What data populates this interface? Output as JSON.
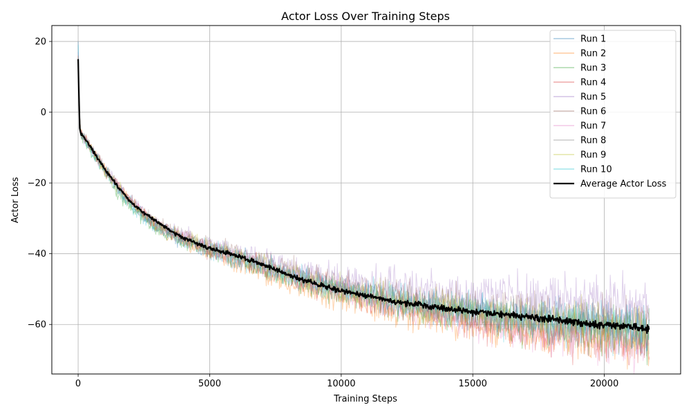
{
  "chart_data": {
    "type": "line",
    "title": "Actor Loss Over Training Steps",
    "xlabel": "Training Steps",
    "ylabel": "Actor Loss",
    "xlim": [
      -1000,
      22900
    ],
    "ylim": [
      -74,
      24.5
    ],
    "xticks": [
      0,
      5000,
      10000,
      15000,
      20000
    ],
    "xtick_labels": [
      "0",
      "5000",
      "10000",
      "15000",
      "20000"
    ],
    "yticks": [
      -60,
      -40,
      -20,
      0,
      20
    ],
    "ytick_labels": [
      "−60",
      "−40",
      "−20",
      "0",
      "20"
    ],
    "grid": true,
    "legend_position": "top-right",
    "series": [
      {
        "name": "Run 1",
        "color": "#1f77b4",
        "opacity": 0.35,
        "noise_start": 0.8,
        "noise_end": 3.5,
        "offset_end": 0.0,
        "x": [
          0,
          50,
          100,
          300,
          600,
          1000,
          1500,
          2000,
          2500,
          3000,
          4000,
          5000,
          6000,
          7000,
          8000,
          9000,
          10000,
          11000,
          12000,
          13000,
          14000,
          15000,
          16000,
          17000,
          18000,
          19000,
          20000,
          21000,
          21700
        ],
        "y": [
          20,
          0,
          -6.5,
          -8.5,
          -12,
          -16.5,
          -21.5,
          -26,
          -29.5,
          -32.5,
          -36.5,
          -39,
          -41.5,
          -44,
          -46.5,
          -48.5,
          -50.5,
          -52,
          -53.5,
          -55,
          -56,
          -57,
          -57.5,
          -58.3,
          -59,
          -59.8,
          -60.3,
          -61,
          -61.5
        ]
      },
      {
        "name": "Run 2",
        "color": "#ff7f0e",
        "opacity": 0.35,
        "noise_start": 0.8,
        "noise_end": 3.5,
        "offset_end": -4.0,
        "x": [
          0,
          50,
          100,
          300,
          600,
          1000,
          1500,
          2000,
          2500,
          3000,
          4000,
          5000,
          6000,
          7000,
          8000,
          9000,
          10000,
          11000,
          12000,
          13000,
          14000,
          15000,
          16000,
          17000,
          18000,
          19000,
          20000,
          21000,
          21700
        ],
        "y": [
          16,
          0,
          -6,
          -8,
          -11.5,
          -16,
          -21,
          -25.5,
          -29,
          -32.5,
          -36.5,
          -39.5,
          -42.5,
          -45.5,
          -48.5,
          -51,
          -53,
          -55,
          -56.5,
          -58,
          -59,
          -60.5,
          -61.5,
          -62.5,
          -63,
          -63.5,
          -64,
          -64.5,
          -65
        ]
      },
      {
        "name": "Run 3",
        "color": "#2ca02c",
        "opacity": 0.35,
        "noise_start": 0.8,
        "noise_end": 3.5,
        "offset_end": -1.5,
        "x": [
          0,
          50,
          100,
          300,
          600,
          1000,
          1500,
          2000,
          2500,
          3000,
          4000,
          5000,
          6000,
          7000,
          8000,
          9000,
          10000,
          11000,
          12000,
          13000,
          14000,
          15000,
          16000,
          17000,
          18000,
          19000,
          20000,
          21000,
          21700
        ],
        "y": [
          15,
          0,
          -6.5,
          -8.5,
          -12.5,
          -17,
          -22.5,
          -27,
          -30,
          -33,
          -36.5,
          -39,
          -41.5,
          -44.5,
          -47,
          -49,
          -51,
          -52.5,
          -54,
          -55.5,
          -56.5,
          -57.5,
          -58.5,
          -59.3,
          -60,
          -60.8,
          -61.5,
          -62,
          -62.5
        ]
      },
      {
        "name": "Run 4",
        "color": "#d62728",
        "opacity": 0.3,
        "noise_start": 0.8,
        "noise_end": 3.5,
        "offset_end": -4.5,
        "x": [
          0,
          50,
          100,
          300,
          600,
          1000,
          1500,
          2000,
          2500,
          3000,
          4000,
          5000,
          6000,
          7000,
          8000,
          9000,
          10000,
          11000,
          12000,
          13000,
          14000,
          15000,
          16000,
          17000,
          18000,
          19000,
          20000,
          21000,
          21700
        ],
        "y": [
          16,
          0,
          -6,
          -8,
          -11.5,
          -16,
          -21,
          -25.5,
          -29,
          -32,
          -35.5,
          -38.5,
          -41,
          -43.5,
          -46,
          -48.5,
          -50.5,
          -52.5,
          -54.5,
          -56,
          -57.5,
          -59,
          -60.5,
          -61.5,
          -62.5,
          -63.5,
          -64.5,
          -65.5,
          -66.5
        ]
      },
      {
        "name": "Run 5",
        "color": "#9467bd",
        "opacity": 0.3,
        "noise_start": 0.8,
        "noise_end": 4.0,
        "offset_end": 6.0,
        "x": [
          0,
          50,
          100,
          300,
          600,
          1000,
          1500,
          2000,
          2500,
          3000,
          4000,
          5000,
          6000,
          7000,
          8000,
          9000,
          10000,
          11000,
          12000,
          13000,
          14000,
          15000,
          16000,
          17000,
          18000,
          19000,
          20000,
          21000,
          21700
        ],
        "y": [
          17,
          0,
          -6,
          -8,
          -11,
          -15.5,
          -20.5,
          -25,
          -28.5,
          -31.5,
          -35,
          -37.5,
          -39.5,
          -42,
          -44,
          -45.5,
          -47,
          -48,
          -49,
          -50,
          -51,
          -51.5,
          -52,
          -52.5,
          -53,
          -53.5,
          -54,
          -54.5,
          -55
        ]
      },
      {
        "name": "Run 6",
        "color": "#8c564b",
        "opacity": 0.3,
        "noise_start": 0.8,
        "noise_end": 3.5,
        "offset_end": 2.5,
        "x": [
          0,
          50,
          100,
          300,
          600,
          1000,
          1500,
          2000,
          2500,
          3000,
          4000,
          5000,
          6000,
          7000,
          8000,
          9000,
          10000,
          11000,
          12000,
          13000,
          14000,
          15000,
          16000,
          17000,
          18000,
          19000,
          20000,
          21000,
          21700
        ],
        "y": [
          15,
          0,
          -5.5,
          -7.5,
          -11,
          -15.5,
          -20.5,
          -25,
          -28.5,
          -31.5,
          -35,
          -37.5,
          -39.5,
          -42,
          -44.5,
          -46.5,
          -48.5,
          -50,
          -51.5,
          -53,
          -54,
          -55,
          -55.8,
          -56.5,
          -57.2,
          -57.8,
          -58.3,
          -58.8,
          -59
        ]
      },
      {
        "name": "Run 7",
        "color": "#e377c2",
        "opacity": 0.3,
        "noise_start": 0.8,
        "noise_end": 3.5,
        "offset_end": -2.5,
        "x": [
          0,
          50,
          100,
          300,
          600,
          1000,
          1500,
          2000,
          2500,
          3000,
          4000,
          5000,
          6000,
          7000,
          8000,
          9000,
          10000,
          11000,
          12000,
          13000,
          14000,
          15000,
          16000,
          17000,
          18000,
          19000,
          20000,
          21000,
          21700
        ],
        "y": [
          14,
          0,
          -6,
          -8,
          -11.5,
          -16,
          -21,
          -25.5,
          -29,
          -32,
          -35.5,
          -38.5,
          -41,
          -43.5,
          -46,
          -48.5,
          -50.5,
          -52.5,
          -54.5,
          -56.5,
          -58,
          -59.5,
          -60.5,
          -61.5,
          -62.5,
          -63.5,
          -64.5,
          -65.5,
          -66
        ]
      },
      {
        "name": "Run 8",
        "color": "#7f7f7f",
        "opacity": 0.3,
        "noise_start": 0.8,
        "noise_end": 3.5,
        "offset_end": 1.0,
        "x": [
          0,
          50,
          100,
          300,
          600,
          1000,
          1500,
          2000,
          2500,
          3000,
          4000,
          5000,
          6000,
          7000,
          8000,
          9000,
          10000,
          11000,
          12000,
          13000,
          14000,
          15000,
          16000,
          17000,
          18000,
          19000,
          20000,
          21000,
          21700
        ],
        "y": [
          15,
          0,
          -6,
          -8,
          -11.5,
          -16,
          -21,
          -25.5,
          -29,
          -32,
          -35.5,
          -38,
          -40.5,
          -43,
          -45.5,
          -47.5,
          -49.5,
          -51,
          -52.5,
          -54,
          -55,
          -56,
          -57,
          -57.8,
          -58.5,
          -59.2,
          -59.8,
          -60.3,
          -60.8
        ]
      },
      {
        "name": "Run 9",
        "color": "#bcbd22",
        "opacity": 0.3,
        "noise_start": 0.8,
        "noise_end": 3.5,
        "offset_end": -1.5,
        "x": [
          0,
          50,
          100,
          300,
          600,
          1000,
          1500,
          2000,
          2500,
          3000,
          4000,
          5000,
          6000,
          7000,
          8000,
          9000,
          10000,
          11000,
          12000,
          13000,
          14000,
          15000,
          16000,
          17000,
          18000,
          19000,
          20000,
          21000,
          21700
        ],
        "y": [
          15,
          0,
          -6,
          -8,
          -11.5,
          -16,
          -21,
          -25.5,
          -29,
          -32,
          -35.5,
          -38,
          -40.5,
          -43,
          -45.5,
          -48,
          -50,
          -51.5,
          -53,
          -54.5,
          -55.5,
          -56.5,
          -57.5,
          -58.5,
          -59.5,
          -60.5,
          -61.5,
          -62,
          -62.5
        ]
      },
      {
        "name": "Run 10",
        "color": "#17becf",
        "opacity": 0.3,
        "noise_start": 0.8,
        "noise_end": 3.5,
        "offset_end": 0.0,
        "x": [
          0,
          50,
          100,
          300,
          600,
          1000,
          1500,
          2000,
          2500,
          3000,
          4000,
          5000,
          6000,
          7000,
          8000,
          9000,
          10000,
          11000,
          12000,
          13000,
          14000,
          15000,
          16000,
          17000,
          18000,
          19000,
          20000,
          21000,
          21700
        ],
        "y": [
          19,
          0,
          -6.5,
          -8.5,
          -12,
          -16.5,
          -21.5,
          -26.5,
          -29.5,
          -32.5,
          -36,
          -38.5,
          -41,
          -43.5,
          -46,
          -48,
          -50,
          -51.5,
          -53,
          -54.5,
          -55.5,
          -56.5,
          -57.5,
          -58.3,
          -59,
          -59.8,
          -60.5,
          -61,
          -61.5
        ]
      },
      {
        "name": "Average Actor Loss",
        "color": "#000000",
        "opacity": 1.0,
        "noise_start": 0.2,
        "noise_end": 0.6,
        "offset_end": 0.0,
        "line_width": 2.2,
        "x": [
          0,
          30,
          60,
          100,
          200,
          400,
          700,
          1000,
          1500,
          2000,
          2500,
          3000,
          3500,
          4000,
          4500,
          5000,
          6000,
          7000,
          8000,
          9000,
          10000,
          11000,
          12000,
          13000,
          14000,
          15000,
          16000,
          17000,
          18000,
          19000,
          20000,
          21000,
          21700
        ],
        "y": [
          15,
          5,
          -4.5,
          -6,
          -7,
          -9,
          -12.5,
          -16,
          -21,
          -25.5,
          -28.5,
          -31,
          -33.5,
          -35.5,
          -37,
          -38.5,
          -40.5,
          -43,
          -46,
          -48.5,
          -50.5,
          -52,
          -53.5,
          -54.5,
          -55.5,
          -56.5,
          -57,
          -58,
          -58.5,
          -59.5,
          -60,
          -60.5,
          -61
        ]
      }
    ]
  }
}
